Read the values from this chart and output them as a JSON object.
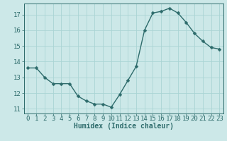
{
  "x": [
    0,
    1,
    2,
    3,
    4,
    5,
    6,
    7,
    8,
    9,
    10,
    11,
    12,
    13,
    14,
    15,
    16,
    17,
    18,
    19,
    20,
    21,
    22,
    23
  ],
  "y": [
    13.6,
    13.6,
    13.0,
    12.6,
    12.6,
    12.6,
    11.8,
    11.5,
    11.3,
    11.3,
    11.1,
    11.9,
    12.8,
    13.7,
    16.0,
    17.1,
    17.2,
    17.4,
    17.1,
    16.5,
    15.8,
    15.3,
    14.9,
    14.8
  ],
  "xlabel": "Humidex (Indice chaleur)",
  "ylim": [
    10.7,
    17.7
  ],
  "xlim": [
    -0.5,
    23.5
  ],
  "yticks": [
    11,
    12,
    13,
    14,
    15,
    16,
    17
  ],
  "xticks": [
    0,
    1,
    2,
    3,
    4,
    5,
    6,
    7,
    8,
    9,
    10,
    11,
    12,
    13,
    14,
    15,
    16,
    17,
    18,
    19,
    20,
    21,
    22,
    23
  ],
  "line_color": "#2d6b6b",
  "marker_color": "#2d6b6b",
  "bg_color": "#cce8e8",
  "grid_color": "#aad4d4",
  "axis_color": "#2d6b6b",
  "tick_label_color": "#2d6b6b",
  "xlabel_color": "#2d6b6b",
  "xlabel_fontsize": 7.0,
  "tick_fontsize": 6.5,
  "linewidth": 1.0,
  "markersize": 2.5
}
